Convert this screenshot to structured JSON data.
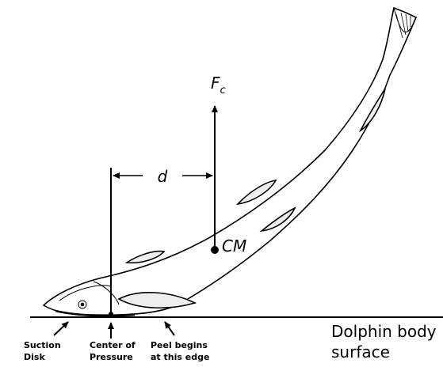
{
  "labels": {
    "force": {
      "main": "F",
      "sub": "c"
    },
    "distance": "d",
    "center_of_mass": "CM",
    "surface": [
      "Dolphin body",
      "surface"
    ],
    "callouts": [
      {
        "lines": [
          "Suction",
          "Disk"
        ]
      },
      {
        "lines": [
          "Center of",
          "Pressure"
        ]
      },
      {
        "lines": [
          "Peel begins",
          "at this edge"
        ]
      }
    ]
  }
}
